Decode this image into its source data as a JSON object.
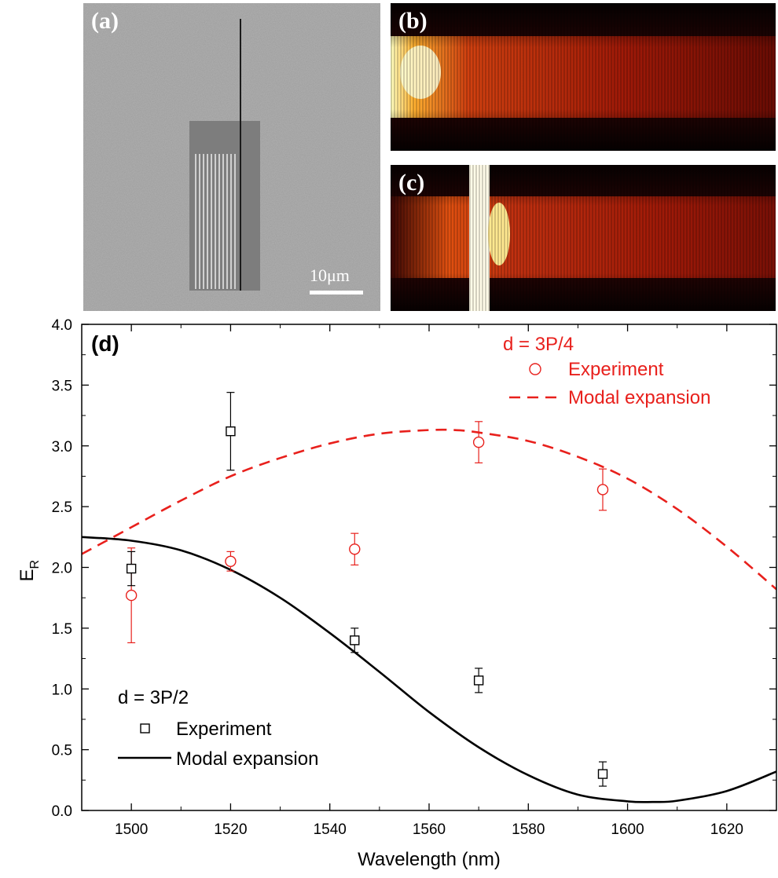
{
  "panels": {
    "a": {
      "label": "(a)",
      "scale_bar": "10μm"
    },
    "b": {
      "label": "(b)"
    },
    "c": {
      "label": "(c)"
    }
  },
  "chart_data": {
    "type": "line",
    "panel_label": "(d)",
    "xlabel": "Wavelength (nm)",
    "ylabel": "E",
    "ylabel_sub": "R",
    "xlim": [
      1490,
      1630
    ],
    "ylim": [
      0,
      4.0
    ],
    "xticks": [
      1500,
      1520,
      1540,
      1560,
      1580,
      1600,
      1620
    ],
    "yticks": [
      "0.0",
      "0.5",
      "1.0",
      "1.5",
      "2.0",
      "2.5",
      "3.0",
      "3.5",
      "4.0"
    ],
    "colors": {
      "red": "#e8201c",
      "black": "#000000"
    },
    "groups": [
      {
        "legend_title": "d = 3P/4",
        "color": "#e8201c",
        "legend_position": "top-right",
        "experiment": {
          "name": "Experiment",
          "marker": "circle",
          "x": [
            1500,
            1520,
            1545,
            1570,
            1595
          ],
          "y": [
            1.77,
            2.05,
            2.15,
            3.03,
            2.64
          ],
          "err": [
            0.39,
            0.08,
            0.13,
            0.17,
            0.17
          ]
        },
        "model": {
          "name": "Modal expansion",
          "style": "dashed",
          "x": [
            1490,
            1495,
            1500,
            1510,
            1520,
            1530,
            1540,
            1550,
            1560,
            1565,
            1570,
            1580,
            1590,
            1600,
            1610,
            1620,
            1630
          ],
          "y": [
            2.11,
            2.22,
            2.33,
            2.55,
            2.75,
            2.9,
            3.02,
            3.1,
            3.13,
            3.13,
            3.11,
            3.04,
            2.91,
            2.73,
            2.48,
            2.17,
            1.82
          ]
        }
      },
      {
        "legend_title": "d = 3P/2",
        "color": "#000000",
        "legend_position": "bottom-left",
        "experiment": {
          "name": "Experiment",
          "marker": "square",
          "x": [
            1500,
            1520,
            1545,
            1570,
            1595
          ],
          "y": [
            1.99,
            3.12,
            1.4,
            1.07,
            0.3
          ],
          "err": [
            0.14,
            0.32,
            0.1,
            0.1,
            0.1
          ]
        },
        "model": {
          "name": "Modal expansion",
          "style": "solid",
          "x": [
            1490,
            1500,
            1510,
            1520,
            1530,
            1540,
            1550,
            1560,
            1570,
            1580,
            1590,
            1600,
            1605,
            1610,
            1620,
            1630
          ],
          "y": [
            2.25,
            2.22,
            2.14,
            1.98,
            1.75,
            1.46,
            1.14,
            0.81,
            0.52,
            0.29,
            0.13,
            0.075,
            0.07,
            0.08,
            0.16,
            0.32
          ]
        }
      }
    ]
  }
}
